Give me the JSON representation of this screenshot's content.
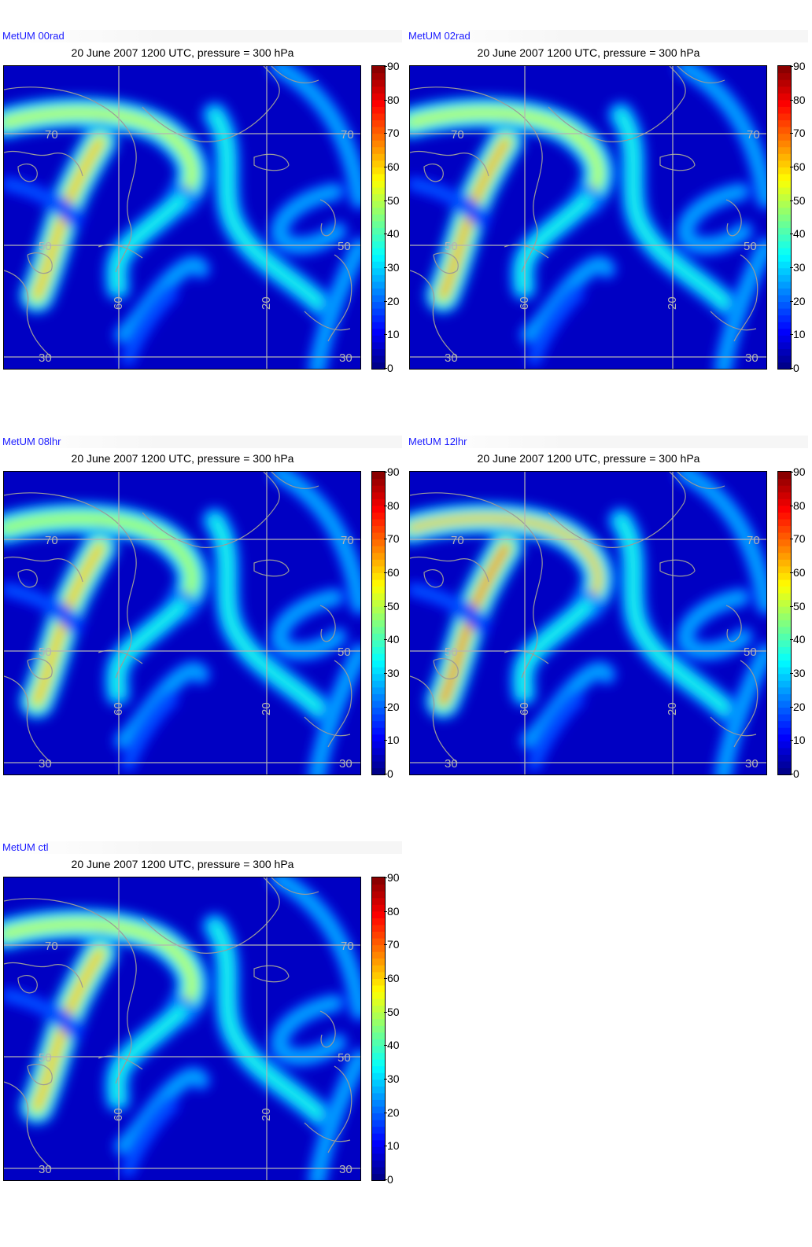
{
  "colorbar": {
    "ticks": [
      "0",
      "10",
      "20",
      "30",
      "40",
      "50",
      "60",
      "70",
      "80",
      "90"
    ],
    "min": 0,
    "max": 90
  },
  "map_labels": {
    "lat_70": "70",
    "lat_50": "50",
    "lat_30": "30",
    "lon_60": "60",
    "lon_20": "20"
  },
  "colors": {
    "grid": "#b4b4b4",
    "coast": "#9a9a9a",
    "run_label": "#1a1aff"
  },
  "panels": [
    {
      "id": "00rad",
      "run_label": "MetUM 00rad",
      "title": "20 June 2007 1200 UTC, pressure = 300 hPa",
      "jet_core_max": 62,
      "north_arc_max": 52
    },
    {
      "id": "02rad",
      "run_label": "MetUM 02rad",
      "title": "20 June 2007 1200 UTC, pressure = 300 hPa",
      "jet_core_max": 64,
      "north_arc_max": 52
    },
    {
      "id": "08lhr",
      "run_label": "MetUM 08lhr",
      "title": "20 June 2007 1200 UTC, pressure = 300 hPa",
      "jet_core_max": 62,
      "north_arc_max": 50
    },
    {
      "id": "12lhr",
      "run_label": "MetUM 12lhr",
      "title": "20 June 2007 1200 UTC, pressure = 300 hPa",
      "jet_core_max": 68,
      "north_arc_max": 62
    },
    {
      "id": "ctl",
      "run_label": "MetUM ctl",
      "title": "20 June 2007 1200 UTC, pressure = 300 hPa",
      "jet_core_max": 62,
      "north_arc_max": 52
    }
  ]
}
